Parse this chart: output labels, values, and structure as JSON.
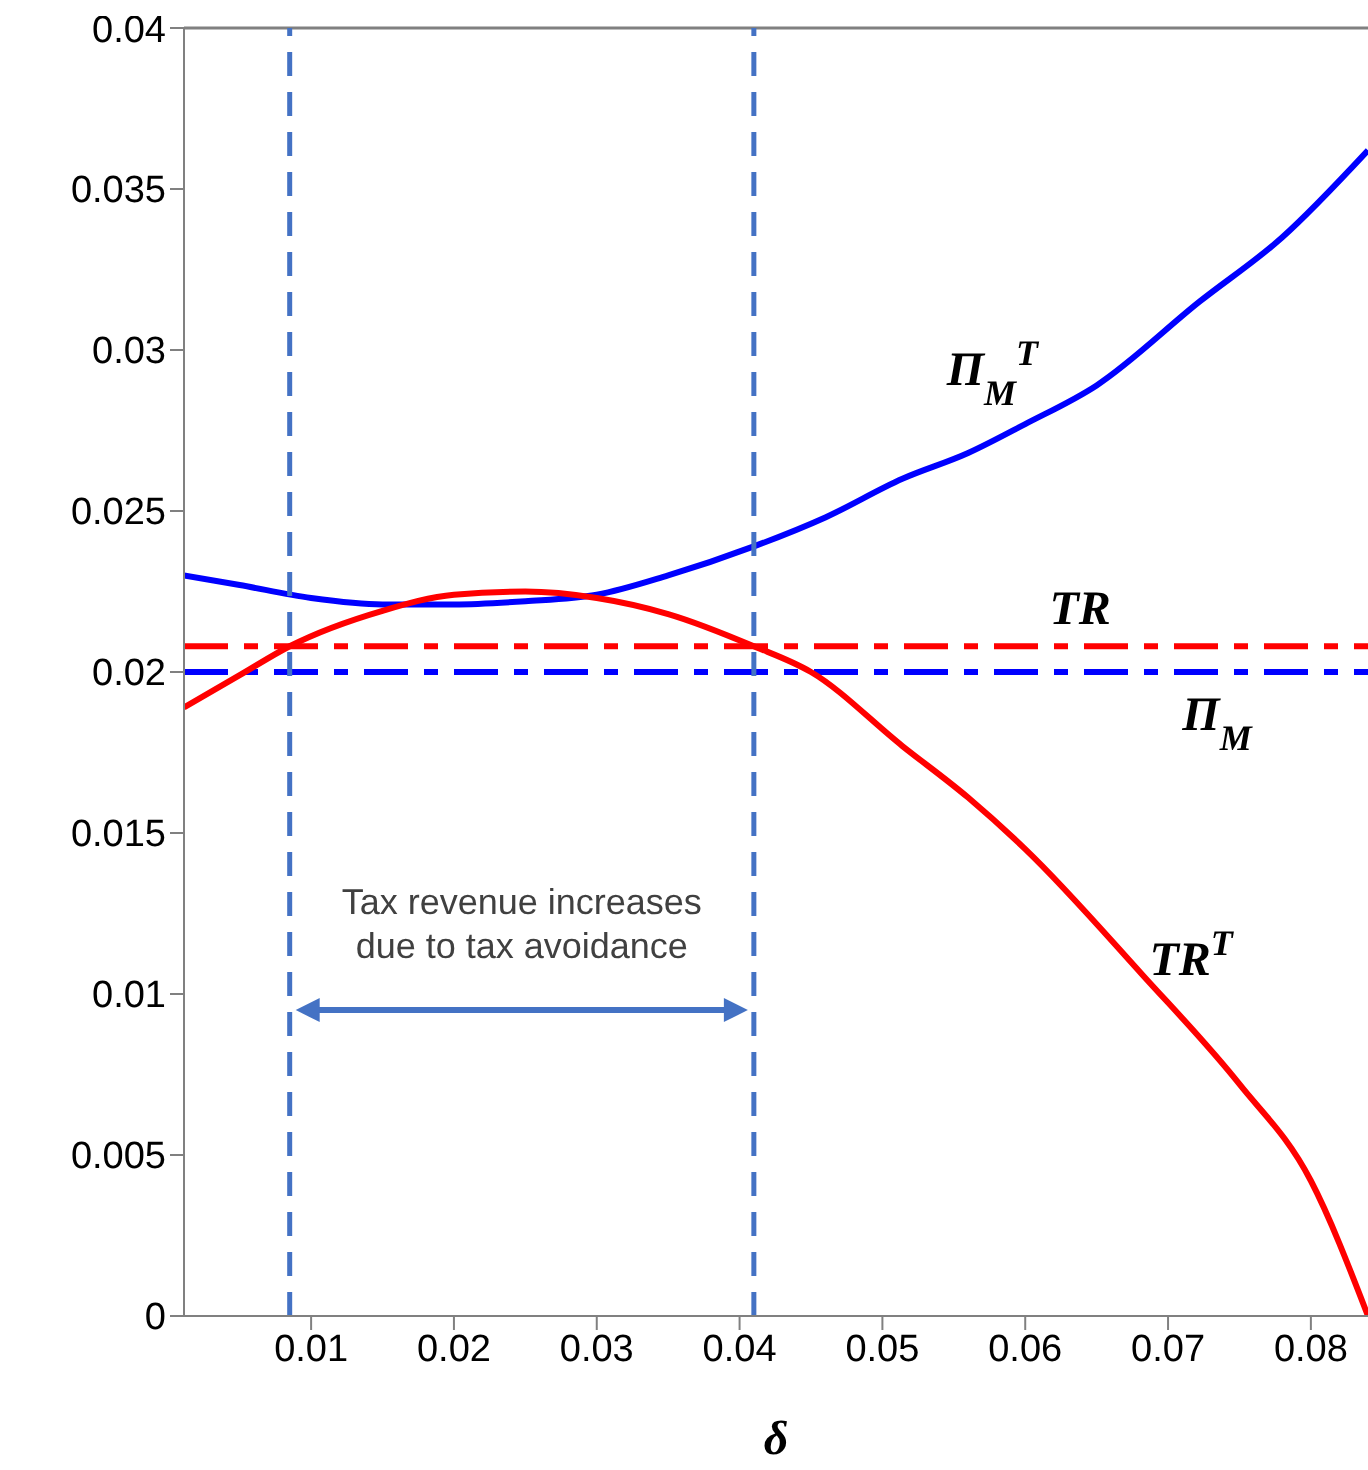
{
  "chart_data": {
    "type": "line",
    "xlabel": "δ",
    "xlim": [
      0.0011,
      0.084
    ],
    "xticks": [
      0.01,
      0.02,
      0.03,
      0.04,
      0.05,
      0.06,
      0.07,
      0.08
    ],
    "ylim": [
      0,
      0.04
    ],
    "yticks": [
      0,
      0.005,
      0.01,
      0.015,
      0.02,
      0.025,
      0.03,
      0.035,
      0.04
    ],
    "marker": "none",
    "series": [
      {
        "name": "Π$_{M}$$^{T}$",
        "color": "#0000ff",
        "line_style": "solid",
        "x": [
          0.0011,
          0.005,
          0.01,
          0.015,
          0.02,
          0.025,
          0.03,
          0.035,
          0.041,
          0.046,
          0.0514,
          0.056,
          0.06,
          0.065,
          0.0722,
          0.078,
          0.084
        ],
        "values": [
          0.023,
          0.0227,
          0.0223,
          0.0221,
          0.0221,
          0.0222,
          0.0224,
          0.023,
          0.0239,
          0.0248,
          0.026,
          0.0268,
          0.0277,
          0.0289,
          0.0315,
          0.0335,
          0.0362
        ]
      },
      {
        "name": "TR",
        "color": "#ff0000",
        "line_style": "dashed",
        "x": [
          0.0011,
          0.084
        ],
        "values": [
          0.0208,
          0.0208
        ]
      },
      {
        "name": "Π$_{M}$",
        "color": "#0000ff",
        "line_style": "dashed",
        "x": [
          0.0011,
          0.084
        ],
        "values": [
          0.02,
          0.02
        ]
      },
      {
        "name": "TR$^{T}$",
        "color": "#ff0000",
        "line_style": "solid",
        "x": [
          0.0011,
          0.005,
          0.0085,
          0.015,
          0.02,
          0.025,
          0.03,
          0.035,
          0.041,
          0.045,
          0.0514,
          0.056,
          0.06,
          0.0682,
          0.075,
          0.08,
          0.084
        ],
        "values": [
          0.0189,
          0.0199,
          0.0208,
          0.0219,
          0.0224,
          0.0225,
          0.0223,
          0.0218,
          0.0208,
          0.02,
          0.0177,
          0.0161,
          0.0145,
          0.0106,
          0.0072,
          0.0042,
          0
        ]
      }
    ],
    "ref_lines": [
      {
        "axis": "x",
        "value": 0.0085,
        "color": "#4472c4",
        "line_style": "dashed"
      },
      {
        "axis": "x",
        "value": 0.041,
        "color": "#4472c4",
        "line_style": "dashed"
      }
    ],
    "annotations": [
      "Tax revenue increases\ndue to tax avoidance"
    ]
  }
}
